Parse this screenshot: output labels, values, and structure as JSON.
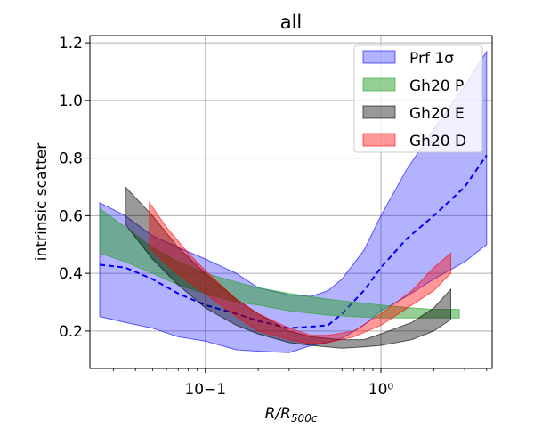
{
  "chart_data": {
    "type": "area",
    "title": "all",
    "xlabel": "R/R500c",
    "ylabel": "intrinsic scatter",
    "xscale": "log",
    "xlim": [
      0.022,
      4.3
    ],
    "ylim": [
      0.07,
      1.225
    ],
    "grid": true,
    "legend_position": "top-right",
    "x_ticks": [
      {
        "value": 0.1,
        "label": "10−1"
      },
      {
        "value": 1.0,
        "label": "10⁰"
      }
    ],
    "y_ticks": [
      {
        "value": 0.2,
        "label": "0.2"
      },
      {
        "value": 0.4,
        "label": "0.4"
      },
      {
        "value": 0.6,
        "label": "0.6"
      },
      {
        "value": 0.8,
        "label": "0.8"
      },
      {
        "value": 1.0,
        "label": "1.0"
      },
      {
        "value": 1.2,
        "label": "1.2"
      }
    ],
    "series": [
      {
        "name": "Prf 1σ",
        "color": "#0000ff",
        "fill_opacity": 0.3,
        "x": [
          0.025,
          0.035,
          0.05,
          0.07,
          0.1,
          0.15,
          0.2,
          0.3,
          0.4,
          0.5,
          0.6,
          0.8,
          1.0,
          1.4,
          2.0,
          3.0,
          4.0
        ],
        "lower": [
          0.25,
          0.23,
          0.21,
          0.18,
          0.165,
          0.135,
          0.13,
          0.125,
          0.15,
          0.16,
          0.175,
          0.22,
          0.27,
          0.32,
          0.38,
          0.44,
          0.5
        ],
        "upper": [
          0.645,
          0.6,
          0.53,
          0.49,
          0.45,
          0.4,
          0.35,
          0.325,
          0.32,
          0.34,
          0.38,
          0.48,
          0.6,
          0.76,
          0.9,
          1.05,
          1.17
        ],
        "median": [
          0.43,
          0.42,
          0.38,
          0.33,
          0.29,
          0.26,
          0.235,
          0.21,
          0.215,
          0.22,
          0.26,
          0.34,
          0.42,
          0.52,
          0.6,
          0.7,
          0.81
        ]
      },
      {
        "name": "Gh20 P",
        "color": "#2ca02c",
        "fill_opacity": 0.5,
        "x": [
          0.025,
          0.035,
          0.05,
          0.07,
          0.1,
          0.15,
          0.2,
          0.3,
          0.5,
          0.7,
          1.0,
          1.5,
          2.0,
          2.8
        ],
        "lower": [
          0.47,
          0.44,
          0.4,
          0.36,
          0.33,
          0.3,
          0.29,
          0.27,
          0.255,
          0.25,
          0.245,
          0.245,
          0.245,
          0.245
        ],
        "upper": [
          0.625,
          0.56,
          0.49,
          0.44,
          0.4,
          0.37,
          0.35,
          0.33,
          0.31,
          0.3,
          0.29,
          0.28,
          0.275,
          0.275
        ]
      },
      {
        "name": "Gh20 E",
        "color": "#000000",
        "fill_opacity": 0.4,
        "x": [
          0.035,
          0.05,
          0.07,
          0.1,
          0.15,
          0.2,
          0.3,
          0.4,
          0.6,
          0.8,
          1.0,
          1.5,
          2.0,
          2.5
        ],
        "lower": [
          0.57,
          0.45,
          0.36,
          0.28,
          0.22,
          0.19,
          0.16,
          0.15,
          0.14,
          0.145,
          0.15,
          0.17,
          0.2,
          0.24
        ],
        "upper": [
          0.7,
          0.6,
          0.49,
          0.4,
          0.31,
          0.26,
          0.2,
          0.18,
          0.17,
          0.17,
          0.19,
          0.23,
          0.28,
          0.345
        ]
      },
      {
        "name": "Gh20 D",
        "color": "#ff0000",
        "fill_opacity": 0.4,
        "x": [
          0.048,
          0.06,
          0.08,
          0.1,
          0.15,
          0.2,
          0.3,
          0.4,
          0.5,
          0.7,
          1.0,
          1.5,
          2.0,
          2.5
        ],
        "lower": [
          0.49,
          0.43,
          0.37,
          0.33,
          0.25,
          0.2,
          0.17,
          0.155,
          0.16,
          0.18,
          0.22,
          0.29,
          0.34,
          0.4
        ],
        "upper": [
          0.645,
          0.56,
          0.47,
          0.41,
          0.31,
          0.26,
          0.21,
          0.185,
          0.185,
          0.2,
          0.26,
          0.34,
          0.42,
          0.47
        ]
      }
    ]
  }
}
